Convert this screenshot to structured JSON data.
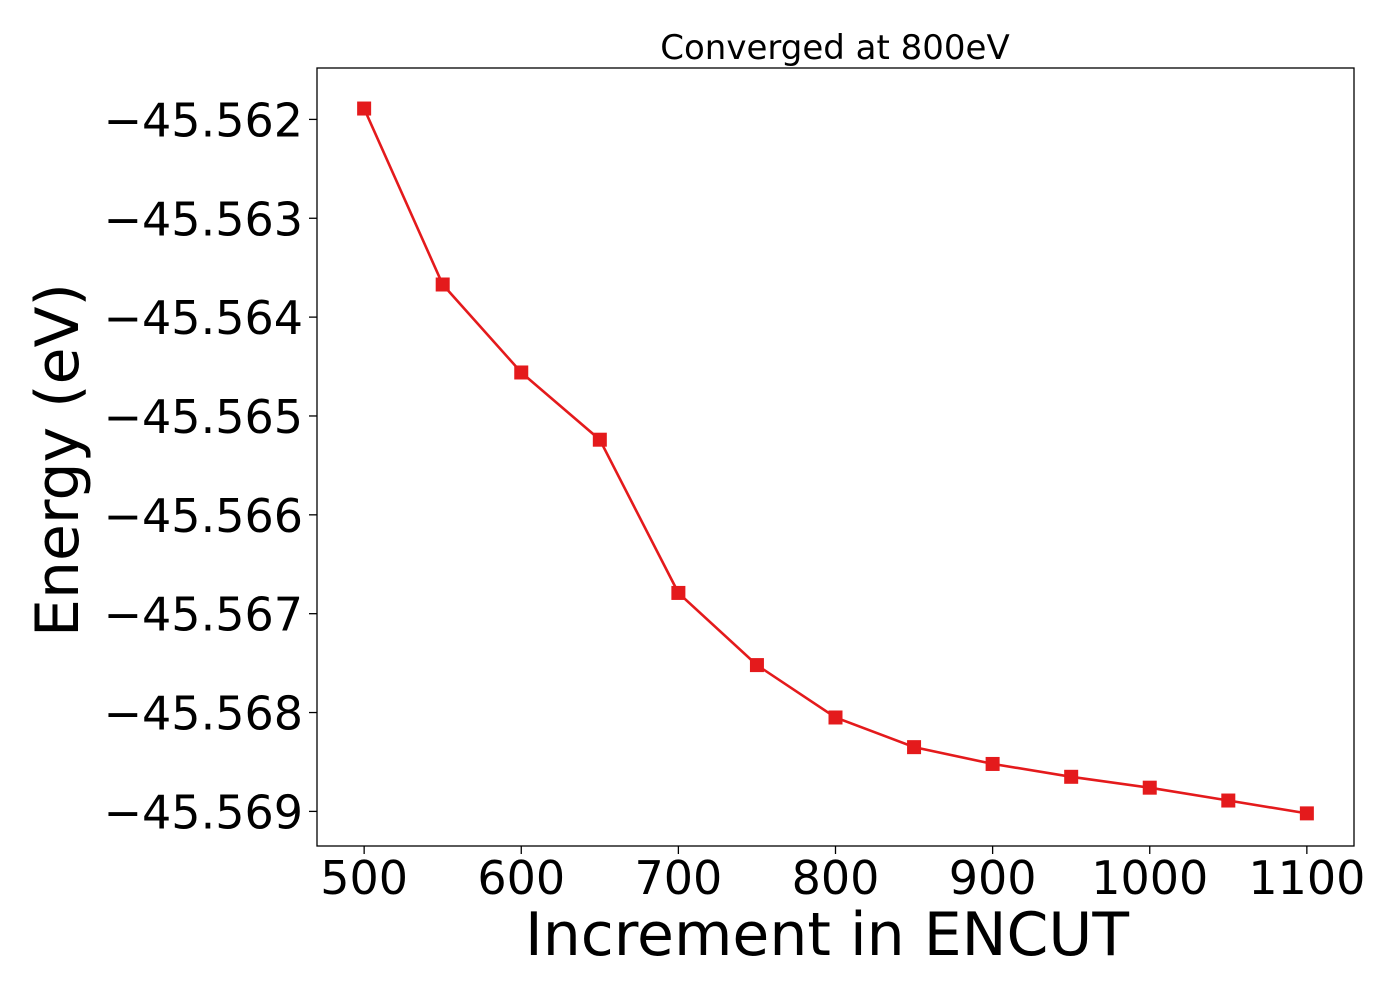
{
  "chart_data": {
    "type": "line",
    "title": "Converged at 800eV",
    "xlabel": "Increment in ENCUT",
    "ylabel": "Energy (eV)",
    "xlim": [
      470,
      1130
    ],
    "ylim": [
      -45.56935,
      -45.56148
    ],
    "xticks": [
      500,
      600,
      700,
      800,
      900,
      1000,
      1100
    ],
    "xtick_labels": [
      "500",
      "600",
      "700",
      "800",
      "900",
      "1000",
      "1100"
    ],
    "yticks": [
      -45.562,
      -45.563,
      -45.564,
      -45.565,
      -45.566,
      -45.567,
      -45.568,
      -45.569
    ],
    "ytick_labels": [
      "−45.562",
      "−45.563",
      "−45.564",
      "−45.565",
      "−45.566",
      "−45.567",
      "−45.568",
      "−45.569"
    ],
    "grid": false,
    "color": "#e41a1c",
    "marker": "square",
    "series": [
      {
        "x": [
          500,
          550,
          600,
          650,
          700,
          750,
          800,
          850,
          900,
          950,
          1000,
          1050,
          1100
        ],
        "y": [
          -45.56189,
          -45.56367,
          -45.56456,
          -45.56524,
          -45.56679,
          -45.56752,
          -45.56805,
          -45.56835,
          -45.56852,
          -45.56865,
          -45.56876,
          -45.56889,
          -45.56902
        ]
      }
    ]
  }
}
